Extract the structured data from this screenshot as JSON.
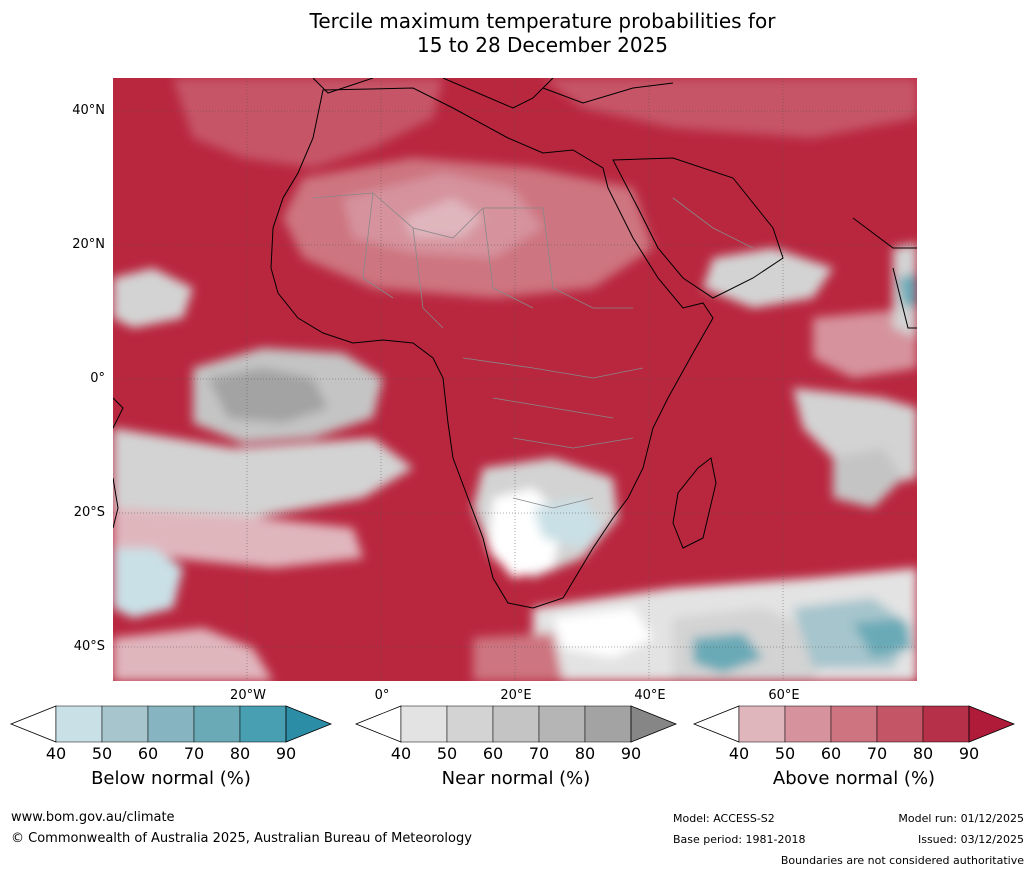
{
  "title": {
    "line1": "Tercile maximum temperature probabilities for",
    "line2": "15 to 28 December 2025"
  },
  "map": {
    "latitude_labels": [
      "40°N",
      "20°N",
      "0°",
      "20°S",
      "40°S"
    ],
    "longitude_labels": [
      "20°W",
      "0°",
      "20°E",
      "40°E",
      "60°E"
    ]
  },
  "colorbars": [
    {
      "name": "below",
      "title": "Below normal (%)",
      "ticks": [
        "40",
        "50",
        "60",
        "70",
        "80",
        "90"
      ],
      "colors": [
        "#c9e0e6",
        "#a6c5cc",
        "#86b5c1",
        "#6aaab7",
        "#489fb1"
      ],
      "under": "#ffffff",
      "over": "#2c8ea6"
    },
    {
      "name": "near",
      "title": "Near normal (%)",
      "ticks": [
        "40",
        "50",
        "60",
        "70",
        "80",
        "90"
      ],
      "colors": [
        "#e3e3e3",
        "#d3d3d3",
        "#c4c4c4",
        "#b5b5b5",
        "#a3a3a3"
      ],
      "under": "#ffffff",
      "over": "#868686"
    },
    {
      "name": "above",
      "title": "Above normal (%)",
      "ticks": [
        "40",
        "50",
        "60",
        "70",
        "80",
        "90"
      ],
      "colors": [
        "#e0b6bd",
        "#d6939d",
        "#cd7480",
        "#c35566",
        "#b73049"
      ],
      "under": "#ffffff",
      "over": "#b01b3a"
    }
  ],
  "footer": {
    "website": "www.bom.gov.au/climate",
    "copyright": "© Commonwealth of Australia 2025, Australian Bureau of Meteorology",
    "model": "Model: ACCESS-S2",
    "base_period": "Base period: 1981-2018",
    "model_run": "Model run: 01/12/2025",
    "issued": "Issued: 03/12/2025",
    "disclaimer": "Boundaries are not considered authoritative"
  }
}
